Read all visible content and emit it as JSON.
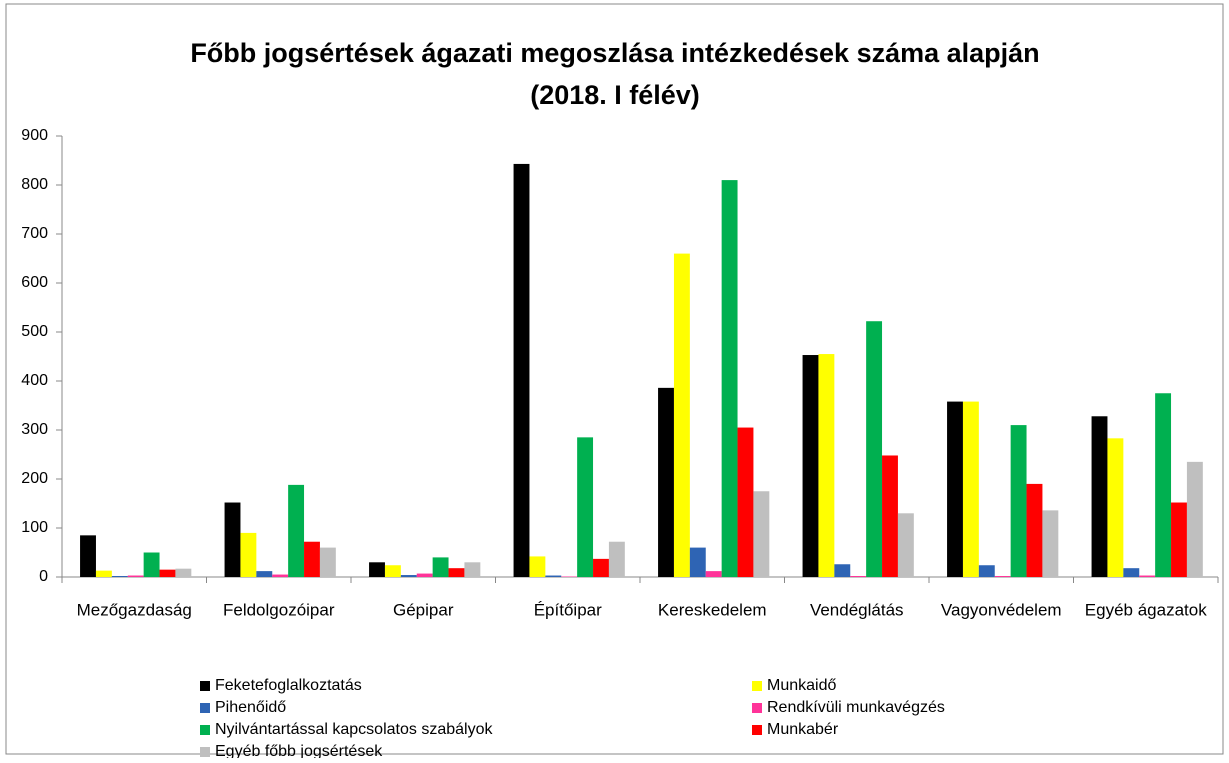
{
  "chart_data": {
    "type": "bar",
    "title": "Főbb jogsértések ágazati megoszlása intézkedések száma alapján",
    "subtitle": "(2018. I félév)",
    "categories": [
      "Mezőgazdaság",
      "Feldolgozóipar",
      "Gépipar",
      "Építőipar",
      "Kereskedelem",
      "Vendéglátás",
      "Vagyonvédelem",
      "Egyéb ágazatok"
    ],
    "series": [
      {
        "name": "Feketefoglalkoztatás",
        "color": "#000000",
        "values": [
          85,
          152,
          30,
          843,
          386,
          453,
          358,
          328
        ]
      },
      {
        "name": "Munkaidő",
        "color": "#ffff00",
        "values": [
          13,
          90,
          24,
          42,
          660,
          455,
          358,
          283
        ]
      },
      {
        "name": "Pihenőidő",
        "color": "#2e64b4",
        "values": [
          2,
          12,
          4,
          3,
          60,
          26,
          24,
          18
        ]
      },
      {
        "name": "Rendkívüli munkavégzés",
        "color": "#ff3399",
        "values": [
          3,
          5,
          7,
          1,
          12,
          2,
          2,
          3
        ]
      },
      {
        "name": "Nyilvántartással kapcsolatos szabályok",
        "color": "#00b050",
        "values": [
          50,
          188,
          40,
          285,
          810,
          522,
          310,
          375
        ]
      },
      {
        "name": "Munkabér",
        "color": "#ff0000",
        "values": [
          15,
          72,
          18,
          37,
          305,
          248,
          190,
          152
        ]
      },
      {
        "name": "Egyéb főbb jogsértések",
        "color": "#bfbfbf",
        "values": [
          17,
          60,
          30,
          72,
          175,
          130,
          136,
          235
        ]
      }
    ],
    "ylim": [
      0,
      900
    ],
    "yticks": [
      0,
      100,
      200,
      300,
      400,
      500,
      600,
      700,
      800,
      900
    ],
    "grid": false
  }
}
